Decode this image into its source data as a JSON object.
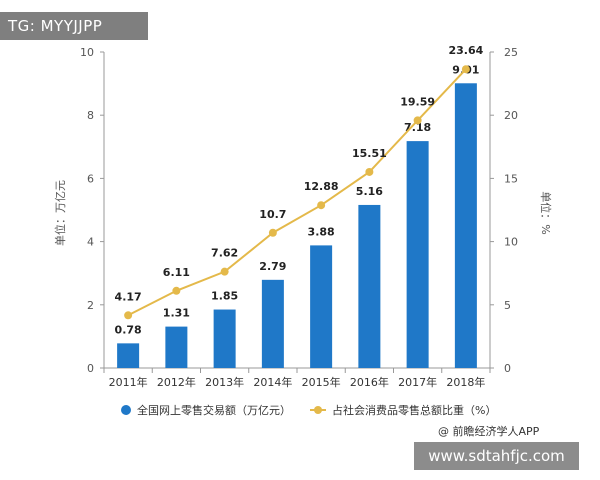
{
  "watermark_tag": "TG: MYYJJPP",
  "watermark_url": "www.sdtahfjc.com",
  "source_credit": "@ 前瞻经济学人APP",
  "colors": {
    "bar": "#1f78c8",
    "line": "#e4b94a",
    "axis": "#999999",
    "grid": "#e6e6e6"
  },
  "chart_data": {
    "type": "bar",
    "categories": [
      "2011年",
      "2012年",
      "2013年",
      "2014年",
      "2015年",
      "2016年",
      "2017年",
      "2018年"
    ],
    "series": [
      {
        "name": "全国网上零售交易额（万亿元）",
        "type": "bar",
        "axis": "left",
        "values": [
          0.78,
          1.31,
          1.85,
          2.79,
          3.88,
          5.16,
          7.18,
          9.01
        ]
      },
      {
        "name": "占社会消费品零售总额比重（%）",
        "type": "line",
        "axis": "right",
        "values": [
          4.17,
          6.11,
          7.62,
          10.7,
          12.88,
          15.51,
          19.59,
          23.64
        ]
      }
    ],
    "ylabel": "单位：万亿元",
    "y2label": "单位：%",
    "ylim": [
      0,
      10
    ],
    "y2lim": [
      0,
      25
    ],
    "yticks": [
      0,
      2,
      4,
      6,
      8,
      10
    ],
    "y2ticks": [
      0,
      5,
      10,
      15,
      20,
      25
    ],
    "grid": false,
    "legend": "bottom"
  }
}
